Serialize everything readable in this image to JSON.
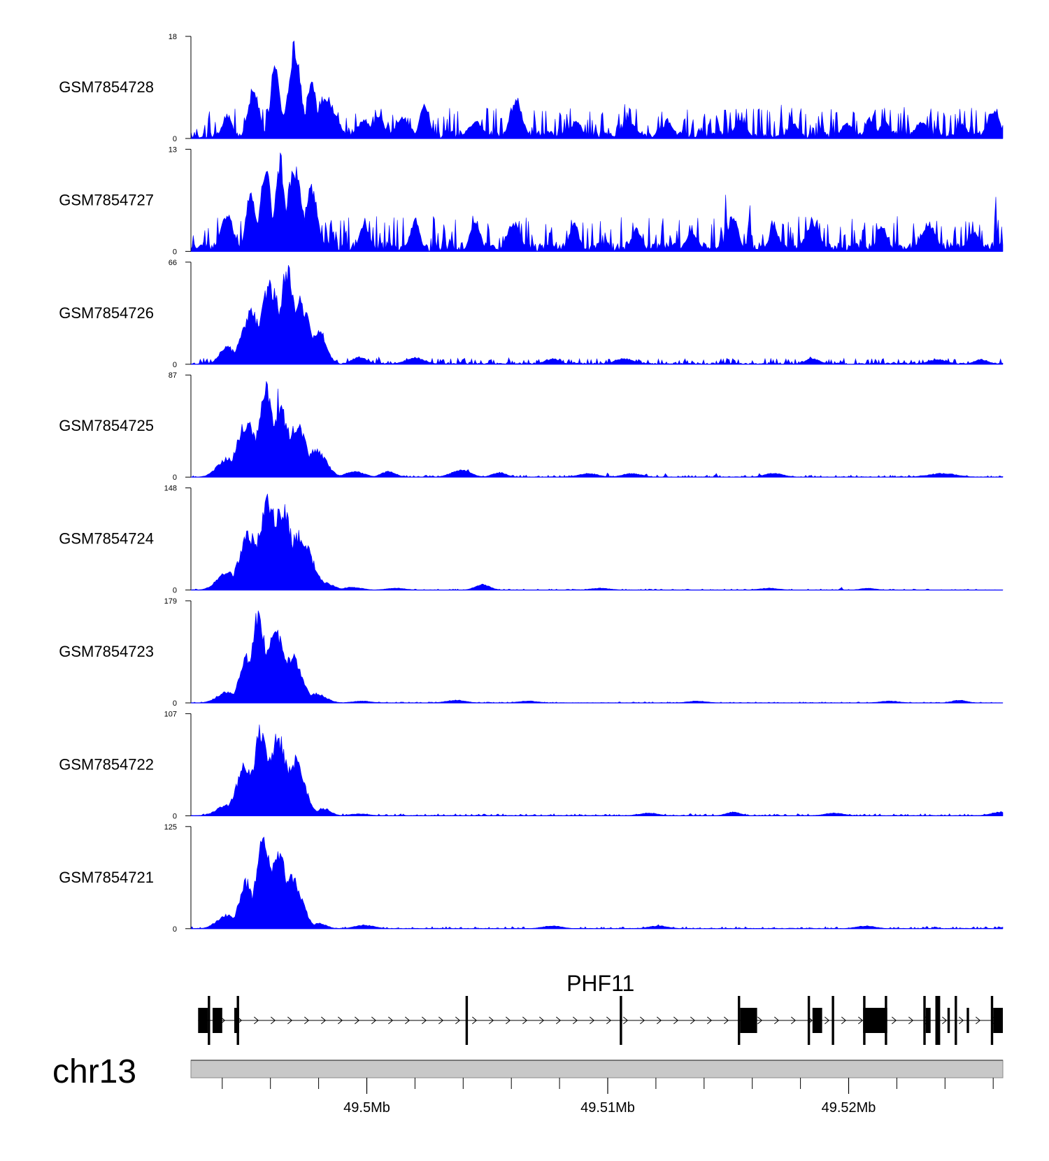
{
  "chart_data": {
    "type": "area",
    "genome_region": {
      "chromosome": "chr13",
      "range_mb": [
        49.4927,
        49.5264
      ]
    },
    "colors": {
      "coverage": "#0000ff",
      "gene": "#000000",
      "ideogram": "#c8c8c8"
    },
    "tracks": [
      {
        "name": "GSM7854728",
        "ylim": [
          0,
          18
        ],
        "ymax_label": "18",
        "ymin_label": "0",
        "baseline": 0.3,
        "peaks": [
          [
            0.0015,
            0.25,
            0.0002
          ],
          [
            0.0026,
            0.55,
            0.00022
          ],
          [
            0.0035,
            0.78,
            0.0002
          ],
          [
            0.0043,
            1.0,
            0.00025
          ],
          [
            0.005,
            0.62,
            0.0002
          ],
          [
            0.0056,
            0.45,
            0.0004
          ],
          [
            0.0072,
            0.2,
            0.0003
          ],
          [
            0.0078,
            0.24,
            0.0002
          ],
          [
            0.0088,
            0.22,
            0.0003
          ],
          [
            0.0097,
            0.36,
            0.0002
          ],
          [
            0.0118,
            0.18,
            0.0003
          ],
          [
            0.0135,
            0.42,
            0.00025
          ],
          [
            0.016,
            0.2,
            0.0002
          ],
          [
            0.0182,
            0.18,
            0.0003
          ],
          [
            0.0198,
            0.2,
            0.0002
          ],
          [
            0.0228,
            0.2,
            0.00025
          ],
          [
            0.025,
            0.18,
            0.0002
          ],
          [
            0.0272,
            0.18,
            0.0002
          ],
          [
            0.0282,
            0.22,
            0.0002
          ],
          [
            0.0288,
            0.2,
            0.0002
          ],
          [
            0.0303,
            0.18,
            0.00025
          ],
          [
            0.032,
            0.16,
            0.0002
          ],
          [
            0.0333,
            0.3,
            0.00025
          ]
        ],
        "spikes": [
          [
            0.0049,
            0.42
          ],
          [
            0.0123,
            0.42
          ],
          [
            0.0153,
            0.2
          ],
          [
            0.0177,
            0.18
          ],
          [
            0.018,
            0.36
          ],
          [
            0.0194,
            0.22
          ],
          [
            0.0215,
            0.2
          ],
          [
            0.0224,
            0.18
          ],
          [
            0.0245,
            0.35
          ],
          [
            0.0262,
            0.3
          ],
          [
            0.0275,
            0.3
          ],
          [
            0.0296,
            0.34
          ],
          [
            0.0307,
            0.36
          ],
          [
            0.031,
            0.28
          ],
          [
            0.0324,
            0.3
          ],
          [
            0.0331,
            0.22
          ]
        ]
      },
      {
        "name": "GSM7854727",
        "ylim": [
          0,
          13
        ],
        "ymax_label": "13",
        "ymin_label": "0",
        "baseline": 0.35,
        "peaks": [
          [
            0.0015,
            0.4,
            0.00025
          ],
          [
            0.0025,
            0.65,
            0.0002
          ],
          [
            0.0031,
            0.95,
            0.0002
          ],
          [
            0.0037,
            1.0,
            0.0002
          ],
          [
            0.0043,
            0.88,
            0.0003
          ],
          [
            0.005,
            0.7,
            0.00025
          ],
          [
            0.0072,
            0.3,
            0.0002
          ],
          [
            0.0093,
            0.32,
            0.0002
          ],
          [
            0.0118,
            0.35,
            0.0002
          ],
          [
            0.0134,
            0.32,
            0.00025
          ],
          [
            0.0159,
            0.3,
            0.0002
          ],
          [
            0.0185,
            0.25,
            0.0002
          ],
          [
            0.0208,
            0.2,
            0.00025
          ],
          [
            0.0225,
            0.4,
            0.0002
          ],
          [
            0.0242,
            0.26,
            0.0002
          ],
          [
            0.0258,
            0.3,
            0.0003
          ],
          [
            0.0287,
            0.27,
            0.0002
          ],
          [
            0.0306,
            0.3,
            0.0003
          ],
          [
            0.0325,
            0.22,
            0.0002
          ]
        ],
        "spikes": [
          [
            0.0056,
            0.35
          ],
          [
            0.0101,
            0.36
          ],
          [
            0.0117,
            0.28
          ],
          [
            0.0149,
            0.26
          ],
          [
            0.0172,
            0.22
          ],
          [
            0.0199,
            0.2
          ],
          [
            0.0222,
            0.6
          ],
          [
            0.0232,
            0.48
          ],
          [
            0.0241,
            0.4
          ],
          [
            0.0261,
            0.3
          ],
          [
            0.0279,
            0.3
          ],
          [
            0.03,
            0.3
          ],
          [
            0.0323,
            0.3
          ],
          [
            0.0334,
            0.62
          ],
          [
            0.0338,
            0.3
          ]
        ]
      },
      {
        "name": "GSM7854726",
        "ylim": [
          0,
          66
        ],
        "ymax_label": "66",
        "ymin_label": "0",
        "baseline": 0.06,
        "peaks": [
          [
            0.0015,
            0.2,
            0.0003
          ],
          [
            0.0025,
            0.55,
            0.0004
          ],
          [
            0.0033,
            0.85,
            0.0004
          ],
          [
            0.004,
            1.0,
            0.0003
          ],
          [
            0.0045,
            0.7,
            0.0004
          ],
          [
            0.0053,
            0.38,
            0.0003
          ],
          [
            0.007,
            0.08,
            0.0003
          ],
          [
            0.0093,
            0.07,
            0.0004
          ],
          [
            0.015,
            0.06,
            0.0003
          ],
          [
            0.018,
            0.06,
            0.0004
          ],
          [
            0.0258,
            0.06,
            0.0003
          ],
          [
            0.031,
            0.05,
            0.0004
          ],
          [
            0.0328,
            0.05,
            0.0003
          ]
        ],
        "spikes": [
          [
            0.0069,
            0.08
          ],
          [
            0.0078,
            0.07
          ],
          [
            0.0113,
            0.06
          ],
          [
            0.0132,
            0.07
          ],
          [
            0.0153,
            0.06
          ],
          [
            0.0186,
            0.06
          ],
          [
            0.0205,
            0.06
          ],
          [
            0.0225,
            0.07
          ],
          [
            0.0248,
            0.05
          ],
          [
            0.0257,
            0.08
          ]
        ]
      },
      {
        "name": "GSM7854725",
        "ylim": [
          0,
          87
        ],
        "ymax_label": "87",
        "ymin_label": "0",
        "baseline": 0.02,
        "peaks": [
          [
            0.0015,
            0.2,
            0.0004
          ],
          [
            0.0023,
            0.6,
            0.0004
          ],
          [
            0.0031,
            0.95,
            0.0003
          ],
          [
            0.0037,
            0.72,
            0.0004
          ],
          [
            0.0044,
            0.55,
            0.0004
          ],
          [
            0.0052,
            0.3,
            0.0004
          ],
          [
            0.0068,
            0.06,
            0.0004
          ],
          [
            0.0082,
            0.06,
            0.0003
          ],
          [
            0.0112,
            0.08,
            0.0004
          ],
          [
            0.0128,
            0.05,
            0.0003
          ],
          [
            0.0165,
            0.04,
            0.0004
          ],
          [
            0.0183,
            0.04,
            0.0004
          ],
          [
            0.0242,
            0.04,
            0.0004
          ],
          [
            0.0312,
            0.04,
            0.0006
          ]
        ],
        "spikes": [
          [
            0.0036,
            1.0
          ],
          [
            0.0115,
            0.08
          ],
          [
            0.0173,
            0.05
          ],
          [
            0.0189,
            0.04
          ],
          [
            0.0197,
            0.04
          ],
          [
            0.0218,
            0.04
          ],
          [
            0.0236,
            0.04
          ]
        ]
      },
      {
        "name": "GSM7854724",
        "ylim": [
          0,
          148
        ],
        "ymax_label": "148",
        "ymin_label": "0",
        "baseline": 0.01,
        "peaks": [
          [
            0.0015,
            0.2,
            0.0004
          ],
          [
            0.0024,
            0.6,
            0.0004
          ],
          [
            0.0032,
            0.95,
            0.0004
          ],
          [
            0.0038,
            0.9,
            0.0004
          ],
          [
            0.0045,
            0.6,
            0.0005
          ],
          [
            0.0055,
            0.08,
            0.0004
          ],
          [
            0.0067,
            0.03,
            0.0004
          ],
          [
            0.0085,
            0.02,
            0.0004
          ],
          [
            0.0121,
            0.06,
            0.0003
          ],
          [
            0.017,
            0.02,
            0.0004
          ],
          [
            0.024,
            0.02,
            0.0004
          ],
          [
            0.0281,
            0.02,
            0.0003
          ]
        ],
        "spikes": [
          [
            0.0034,
            1.0
          ],
          [
            0.0121,
            0.06
          ],
          [
            0.027,
            0.03
          ]
        ]
      },
      {
        "name": "GSM7854723",
        "ylim": [
          0,
          179
        ],
        "ymax_label": "179",
        "ymin_label": "0",
        "baseline": 0.01,
        "peaks": [
          [
            0.0015,
            0.12,
            0.0004
          ],
          [
            0.0023,
            0.5,
            0.0003
          ],
          [
            0.0028,
            0.97,
            0.0003
          ],
          [
            0.0035,
            0.8,
            0.0004
          ],
          [
            0.0042,
            0.5,
            0.0004
          ],
          [
            0.0052,
            0.1,
            0.0004
          ],
          [
            0.0071,
            0.02,
            0.0004
          ],
          [
            0.011,
            0.03,
            0.0004
          ],
          [
            0.014,
            0.02,
            0.0004
          ],
          [
            0.021,
            0.02,
            0.0004
          ],
          [
            0.029,
            0.02,
            0.0004
          ],
          [
            0.0319,
            0.03,
            0.0003
          ]
        ],
        "spikes": [
          [
            0.0028,
            1.0
          ],
          [
            0.0319,
            0.03
          ]
        ]
      },
      {
        "name": "GSM7854722",
        "ylim": [
          0,
          107
        ],
        "ymax_label": "107",
        "ymin_label": "0",
        "baseline": 0.02,
        "peaks": [
          [
            0.0015,
            0.12,
            0.0004
          ],
          [
            0.0023,
            0.55,
            0.0004
          ],
          [
            0.0029,
            0.93,
            0.0003
          ],
          [
            0.0036,
            0.85,
            0.0004
          ],
          [
            0.0043,
            0.6,
            0.0004
          ],
          [
            0.0055,
            0.08,
            0.0003
          ],
          [
            0.007,
            0.02,
            0.0004
          ],
          [
            0.019,
            0.03,
            0.0004
          ],
          [
            0.0225,
            0.04,
            0.0003
          ],
          [
            0.0267,
            0.03,
            0.0004
          ],
          [
            0.0336,
            0.04,
            0.0004
          ]
        ],
        "spikes": [
          [
            0.003,
            1.0
          ],
          [
            0.0225,
            0.05
          ],
          [
            0.0336,
            0.04
          ]
        ]
      },
      {
        "name": "GSM7854721",
        "ylim": [
          0,
          125
        ],
        "ymax_label": "125",
        "ymin_label": "0",
        "baseline": 0.02,
        "peaks": [
          [
            0.0015,
            0.15,
            0.0004
          ],
          [
            0.0023,
            0.5,
            0.0003
          ],
          [
            0.003,
            0.98,
            0.0003
          ],
          [
            0.0036,
            0.82,
            0.0004
          ],
          [
            0.0042,
            0.55,
            0.0004
          ],
          [
            0.0053,
            0.06,
            0.0003
          ],
          [
            0.0072,
            0.04,
            0.0004
          ],
          [
            0.015,
            0.03,
            0.0004
          ],
          [
            0.0194,
            0.03,
            0.0004
          ],
          [
            0.028,
            0.03,
            0.0004
          ]
        ],
        "spikes": [
          [
            0.0029,
            1.0
          ],
          [
            0.0194,
            0.04
          ]
        ]
      }
    ],
    "gene": {
      "name": "PHF11",
      "strand": "+",
      "span": [
        0.0003,
        0.0337
      ],
      "exons": [
        [
          0.0003,
          0.0007,
          "thick"
        ],
        [
          0.0007,
          0.0008,
          "tall"
        ],
        [
          0.0009,
          0.0013,
          "thick"
        ],
        [
          0.0018,
          0.002,
          "thick"
        ],
        [
          0.0019,
          0.002,
          "tall"
        ],
        [
          0.0114,
          0.0115,
          "tall"
        ],
        [
          0.0178,
          0.0179,
          "tall"
        ],
        [
          0.0227,
          0.0228,
          "tall"
        ],
        [
          0.0228,
          0.0235,
          "thick"
        ],
        [
          0.0256,
          0.0257,
          "tall"
        ],
        [
          0.0258,
          0.0262,
          "thick"
        ],
        [
          0.0266,
          0.0267,
          "tall"
        ],
        [
          0.0279,
          0.0289,
          "thick"
        ],
        [
          0.0279,
          0.028,
          "tall"
        ],
        [
          0.0288,
          0.0289,
          "tall"
        ],
        [
          0.0304,
          0.0305,
          "tall"
        ],
        [
          0.0305,
          0.0307,
          "thick"
        ],
        [
          0.0309,
          0.0311,
          "tall"
        ],
        [
          0.0314,
          0.0315,
          "thick"
        ],
        [
          0.0317,
          0.0318,
          "tall"
        ],
        [
          0.0322,
          0.0323,
          "thick"
        ],
        [
          0.0332,
          0.0333,
          "tall"
        ],
        [
          0.0333,
          0.0337,
          "thick"
        ]
      ]
    },
    "axis": {
      "chromosome_label": "chr13",
      "major_ticks": [
        {
          "mb": 49.5,
          "label": "49.5Mb"
        },
        {
          "mb": 49.51,
          "label": "49.51Mb"
        },
        {
          "mb": 49.52,
          "label": "49.52Mb"
        }
      ],
      "minor_tick_step_mb": 0.002
    }
  }
}
